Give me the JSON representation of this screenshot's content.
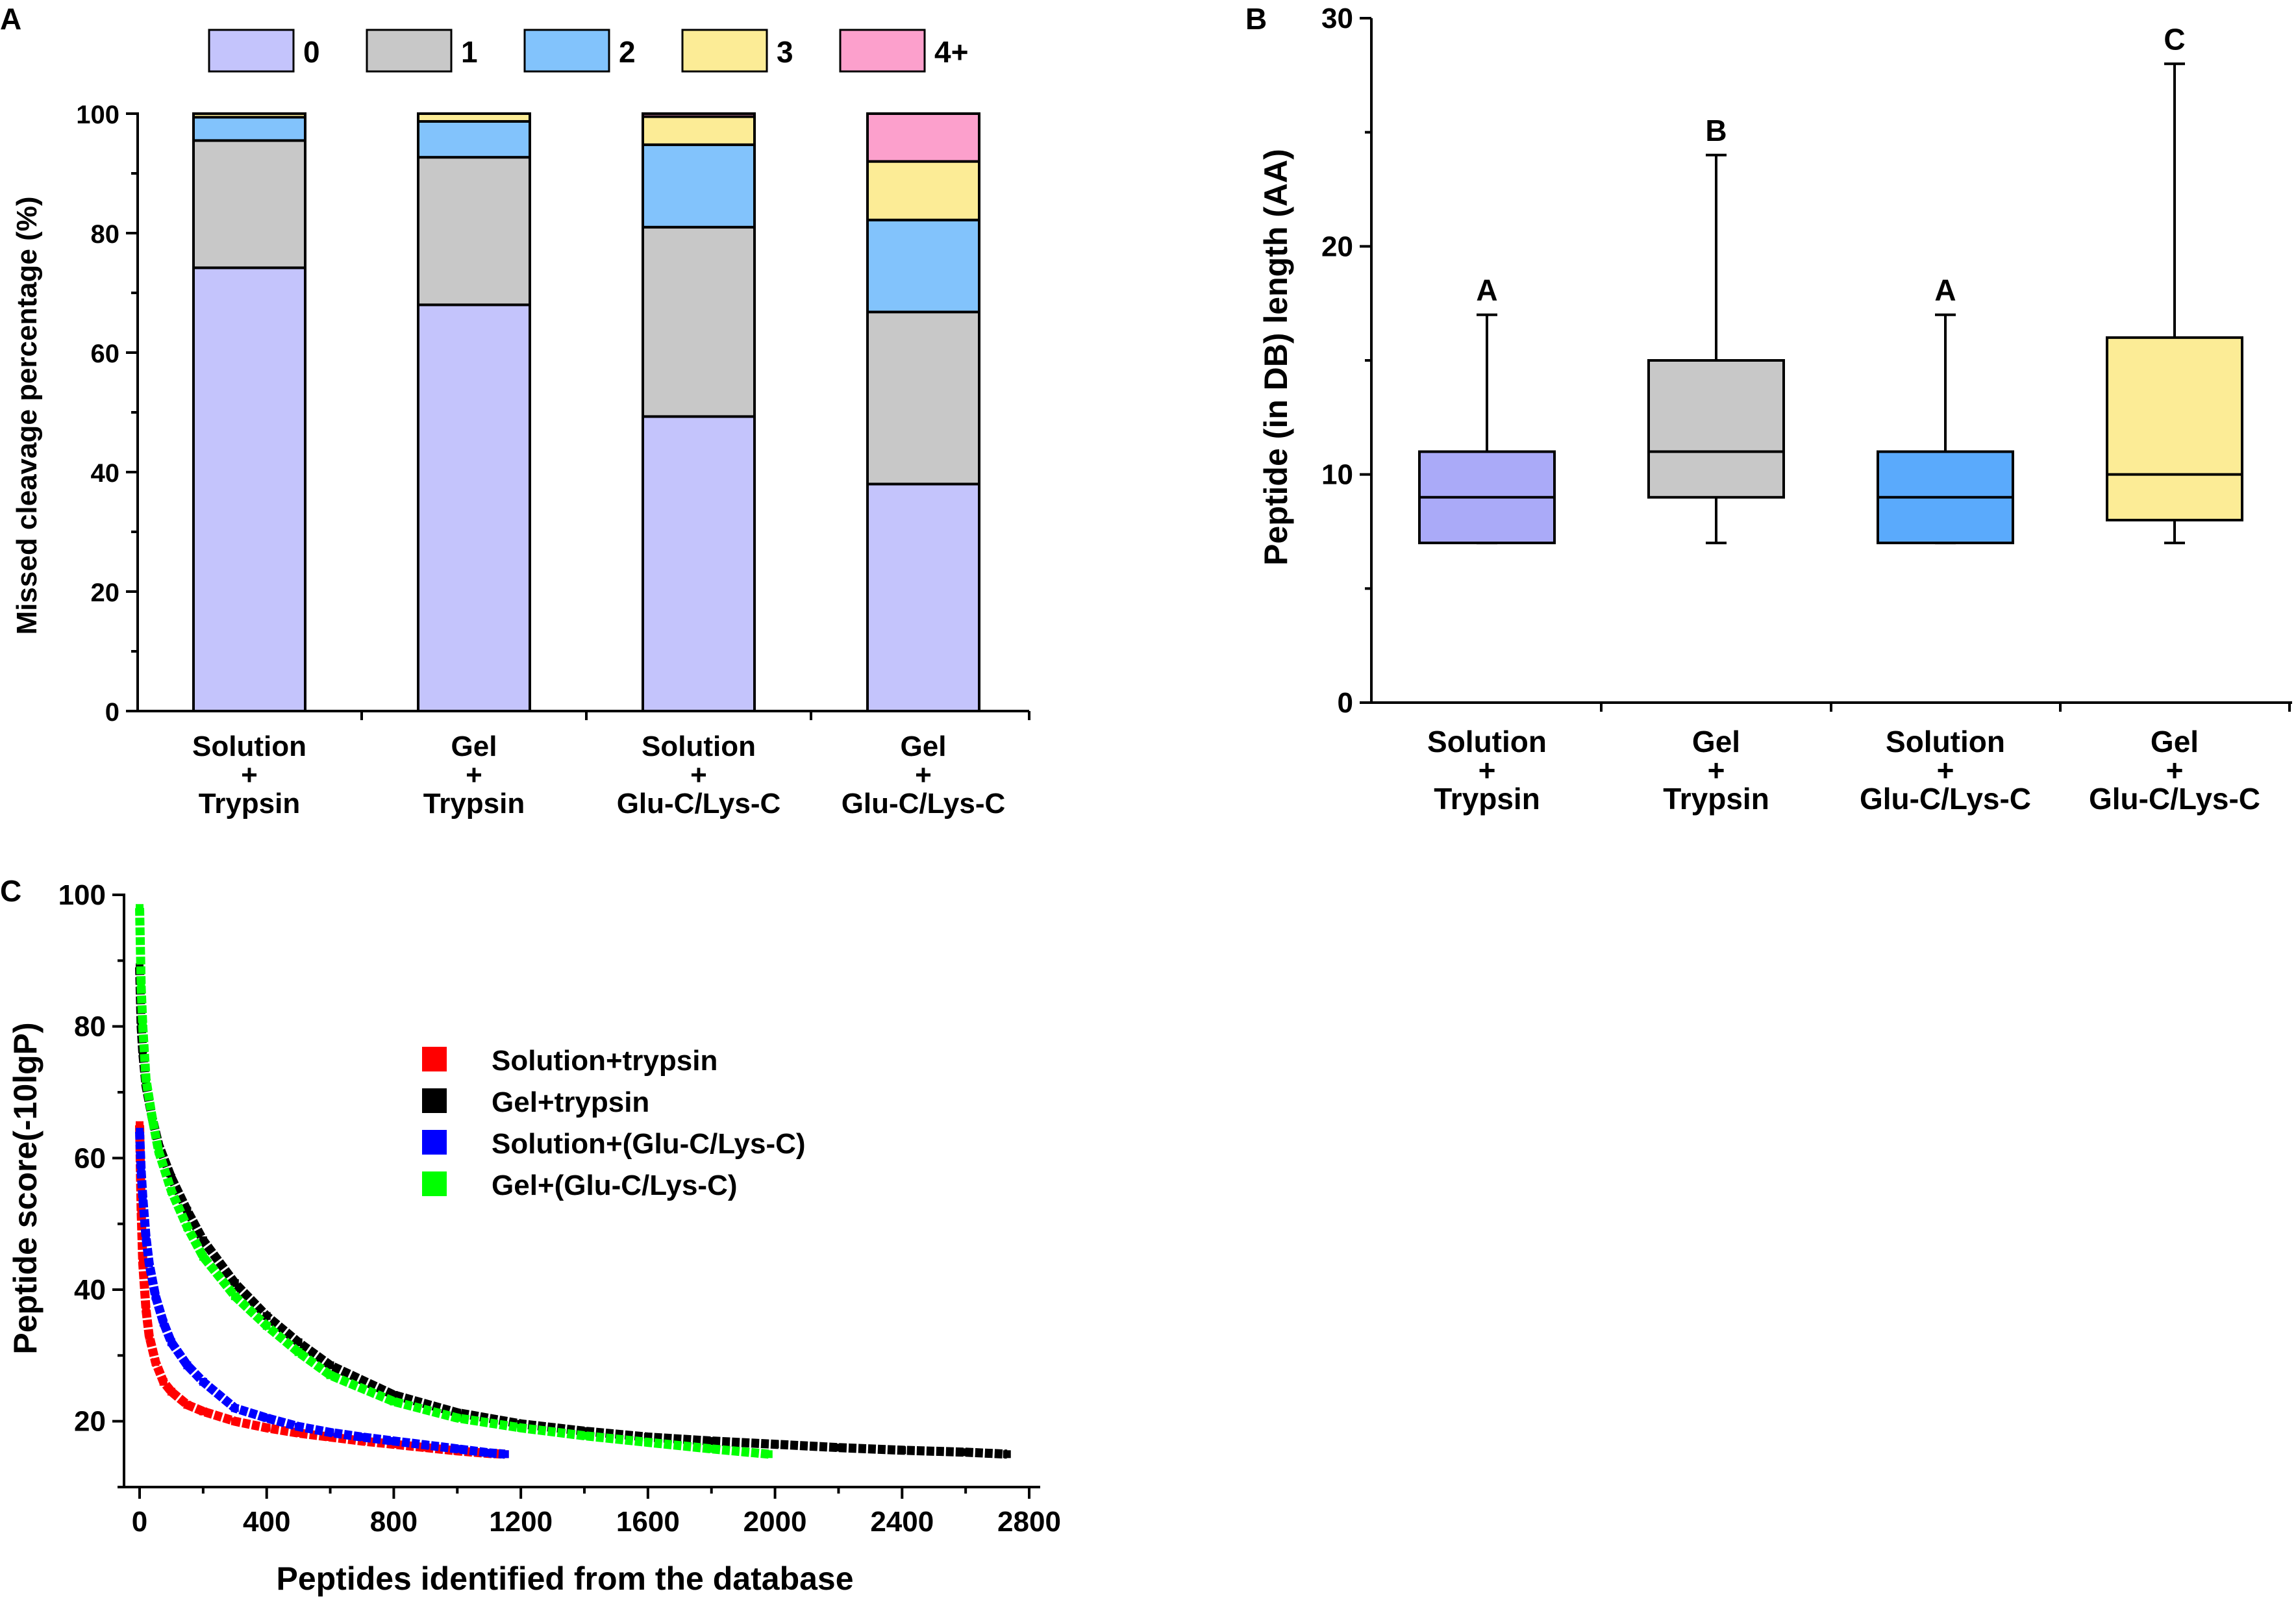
{
  "colors": {
    "c0": "#c4c4fc",
    "c1": "#c8c8c8",
    "c2": "#82c3fc",
    "c3": "#fcec96",
    "c4": "#fca0cc",
    "boxA": "#aaaaf8",
    "boxB": "#c8c8c8",
    "boxC": "#5aaafc",
    "boxD": "#fcec96",
    "solution_trypsin": "#ff0000",
    "gel_trypsin": "#000000",
    "solution_glu": "#0000ff",
    "gel_glu": "#00ff00"
  },
  "panels": {
    "a": {
      "label": "A"
    },
    "b": {
      "label": "B"
    },
    "c": {
      "label": "C"
    }
  },
  "chart_data": [
    {
      "panel": "A",
      "type": "bar",
      "stacked": true,
      "title": "",
      "xlabel": "",
      "ylabel": "Missed cleavage percentage (%)",
      "ylim": [
        0,
        100
      ],
      "yticks": [
        "0",
        "20",
        "40",
        "60",
        "80",
        "100"
      ],
      "categories": [
        [
          "Solution",
          "+",
          "Trypsin"
        ],
        [
          "Gel",
          "+",
          "Trypsin"
        ],
        [
          "Solution",
          "+",
          "Glu-C/Lys-C"
        ],
        [
          "Gel",
          "+",
          "Glu-C/Lys-C"
        ]
      ],
      "legend": {
        "position": "top",
        "entries": [
          "0",
          "1",
          "2",
          "3",
          "4+"
        ]
      },
      "series": [
        {
          "name": "0",
          "values": [
            74.2,
            68.0,
            49.3,
            38.0
          ]
        },
        {
          "name": "1",
          "values": [
            21.3,
            24.7,
            31.7,
            28.8
          ]
        },
        {
          "name": "2",
          "values": [
            3.9,
            6.0,
            13.8,
            15.4
          ]
        },
        {
          "name": "3",
          "values": [
            0.6,
            1.3,
            4.7,
            9.8
          ]
        },
        {
          "name": "4+",
          "values": [
            0.0,
            0.0,
            0.5,
            8.0
          ]
        }
      ]
    },
    {
      "panel": "B",
      "type": "box",
      "title": "",
      "xlabel": "",
      "ylabel": "Peptide (in DB) length (AA)",
      "ylim": [
        0,
        30
      ],
      "yticks": [
        "0",
        "10",
        "20",
        "30"
      ],
      "categories": [
        [
          "Solution",
          "+",
          "Trypsin"
        ],
        [
          "Gel",
          "+",
          "Trypsin"
        ],
        [
          "Solution",
          "+",
          "Glu-C/Lys-C"
        ],
        [
          "Gel",
          "+",
          "Glu-C/Lys-C"
        ]
      ],
      "boxes": [
        {
          "min": 7,
          "q1": 7,
          "median": 9,
          "q3": 11,
          "max": 17,
          "group": "A"
        },
        {
          "min": 7,
          "q1": 9,
          "median": 11,
          "q3": 15,
          "max": 24,
          "group": "B"
        },
        {
          "min": 7,
          "q1": 7,
          "median": 9,
          "q3": 11,
          "max": 17,
          "group": "A"
        },
        {
          "min": 7,
          "q1": 8,
          "median": 10,
          "q3": 16,
          "max": 28,
          "group": "C"
        }
      ]
    },
    {
      "panel": "C",
      "type": "scatter",
      "title": "",
      "xlabel": "Peptides identified from the database",
      "ylabel": "Peptide score(-10lgP)",
      "xlim": [
        0,
        2800
      ],
      "ylim": [
        10,
        100
      ],
      "xticks": [
        "0",
        "400",
        "800",
        "1200",
        "1600",
        "2000",
        "2400",
        "2800"
      ],
      "yticks": [
        "20",
        "40",
        "60",
        "80",
        "100"
      ],
      "legend": {
        "position": "center",
        "entries": [
          "Solution+trypsin",
          "Gel+trypsin",
          "Solution+(Glu-C/Lys-C)",
          "Gel+(Glu-C/Lys-C)"
        ]
      },
      "series": [
        {
          "name": "Solution+trypsin",
          "x": [
            0,
            5,
            10,
            20,
            30,
            50,
            75,
            100,
            150,
            200,
            300,
            400,
            500,
            600,
            700,
            800,
            900,
            1000,
            1100,
            1150
          ],
          "y": [
            65,
            52,
            44,
            37,
            33,
            29,
            26,
            24.5,
            22.5,
            21.5,
            20,
            19,
            18.2,
            17.6,
            17,
            16.5,
            16,
            15.5,
            15.1,
            15
          ]
        },
        {
          "name": "Gel+trypsin",
          "x": [
            0,
            5,
            10,
            20,
            40,
            60,
            100,
            150,
            200,
            300,
            400,
            500,
            600,
            800,
            1000,
            1200,
            1400,
            1600,
            1800,
            2000,
            2200,
            2400,
            2600,
            2730
          ],
          "y": [
            89,
            80,
            76,
            71,
            66,
            62,
            57,
            52,
            47.5,
            41,
            36,
            32,
            28.5,
            24,
            21.3,
            19.6,
            18.5,
            17.6,
            17,
            16.5,
            16,
            15.6,
            15.3,
            15
          ]
        },
        {
          "name": "Solution+(Glu-C/Lys-C)",
          "x": [
            0,
            5,
            10,
            20,
            30,
            50,
            75,
            100,
            150,
            200,
            300,
            400,
            500,
            600,
            700,
            800,
            900,
            1000,
            1100,
            1150
          ],
          "y": [
            64,
            58,
            54,
            48,
            44,
            39,
            35,
            32,
            28.5,
            26,
            22,
            20.5,
            19.2,
            18.3,
            17.6,
            17,
            16.4,
            15.8,
            15.2,
            15
          ]
        },
        {
          "name": "Gel+(Glu-C/Lys-C)",
          "x": [
            0,
            5,
            10,
            20,
            40,
            60,
            100,
            150,
            200,
            300,
            400,
            500,
            600,
            800,
            1000,
            1200,
            1400,
            1600,
            1800,
            1980
          ],
          "y": [
            98,
            86,
            80,
            72,
            66,
            61,
            55,
            49.5,
            45,
            39,
            34.5,
            30.5,
            27,
            23,
            20.5,
            19,
            17.8,
            16.8,
            15.8,
            15
          ]
        }
      ]
    }
  ]
}
